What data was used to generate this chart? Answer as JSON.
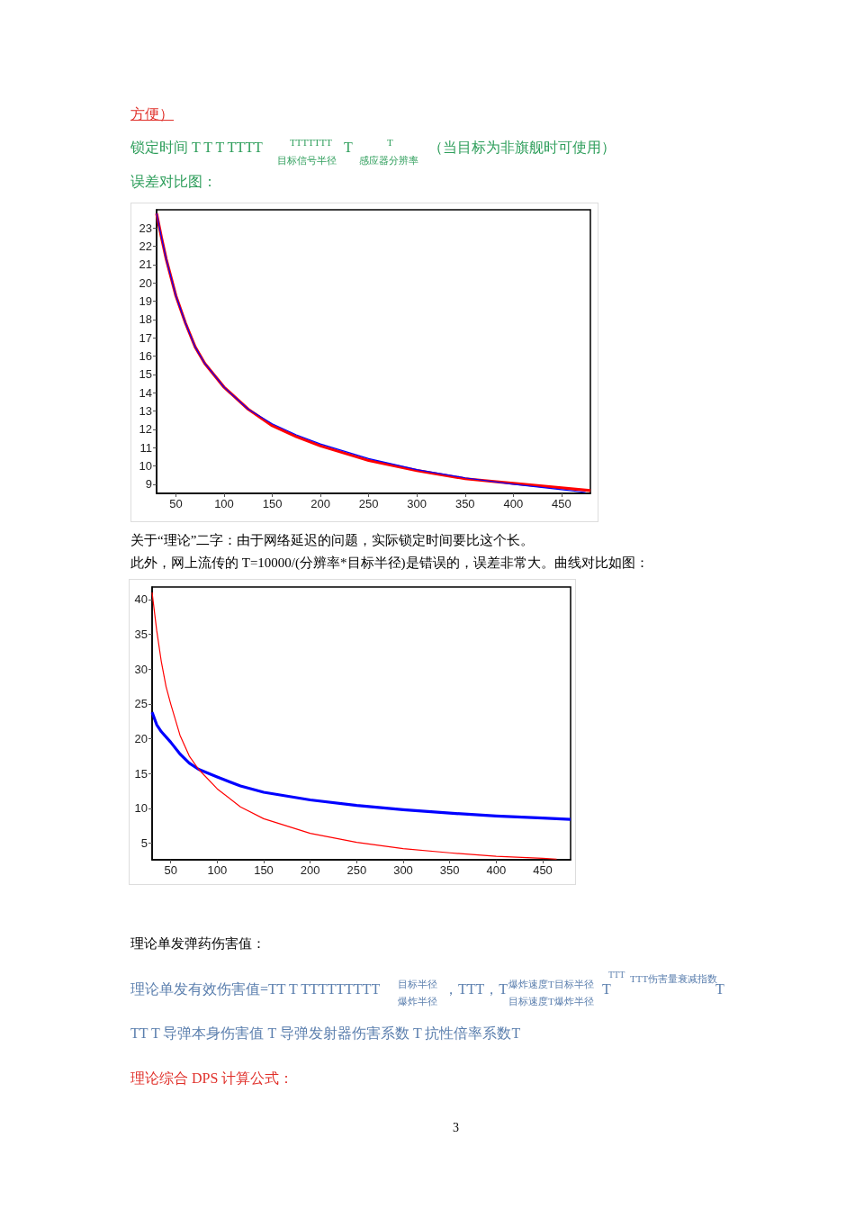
{
  "chart_data": [
    {
      "type": "line",
      "title": "误差对比图：",
      "annotations": [
        "方便）",
        "锁定时间 T T T TTTT",
        "TTTTTTT",
        "目标信号半径",
        "T",
        "T",
        "感应器分辨率",
        "（当目标为非旗舰时可使用）"
      ],
      "xlim": [
        30,
        480
      ],
      "ylim": [
        8.5,
        24
      ],
      "xticks": [
        50,
        100,
        150,
        200,
        250,
        300,
        350,
        400,
        450
      ],
      "yticks": [
        9,
        10,
        11,
        12,
        13,
        14,
        15,
        16,
        17,
        18,
        19,
        20,
        21,
        22,
        23
      ],
      "marker": "none",
      "line_style": "solid",
      "grid": false,
      "series": [
        {
          "color": "#ff0000",
          "x": [
            30,
            35,
            40,
            50,
            60,
            70,
            80,
            100,
            125,
            150,
            175,
            200,
            250,
            300,
            350,
            400,
            450,
            480
          ],
          "values": [
            23.8,
            22.5,
            21.3,
            19.3,
            17.8,
            16.5,
            15.6,
            14.3,
            13.1,
            12.2,
            11.6,
            11.1,
            10.3,
            9.75,
            9.3,
            9.05,
            8.8,
            8.65
          ]
        },
        {
          "color": "#0000ff",
          "x": [
            30,
            35,
            40,
            50,
            60,
            70,
            80,
            100,
            125,
            150,
            175,
            200,
            250,
            300,
            350,
            400,
            450,
            475
          ],
          "values": [
            23.8,
            22.5,
            21.3,
            19.3,
            17.8,
            16.5,
            15.6,
            14.3,
            13.1,
            12.3,
            11.7,
            11.2,
            10.4,
            9.8,
            9.35,
            9.0,
            8.7,
            8.55
          ]
        }
      ]
    },
    {
      "type": "line",
      "title": "此外，网上流传的 T=10000/(分辨率*目标半径)是错误的，误差非常大。曲线对比如图：",
      "annotations": [
        "关于“理论”二字：由于网络延迟的问题，实际锁定时间要比这个长。",
        "理论单发弹药伤害值：",
        "理论单发有效伤害值=TT T TTTTTTTTT",
        "目标半径",
        "爆炸半径",
        "，TTT，T",
        "爆炸速度T目标半径",
        "目标速度T爆炸半径",
        "T",
        "TTT",
        "TTT伤害量衰减指数",
        "T",
        "TT T 导弹本身伤害值 T 导弹发射器伤害系数 T 抗性倍率系数T",
        "理论综合 DPS 计算公式：",
        "3"
      ],
      "xlim": [
        30,
        480
      ],
      "ylim": [
        2.6,
        41.8
      ],
      "xticks": [
        50,
        100,
        150,
        200,
        250,
        300,
        350,
        400,
        450
      ],
      "yticks": [
        5,
        10,
        15,
        20,
        25,
        30,
        35,
        40
      ],
      "marker": "none",
      "line_style": "solid",
      "grid": false,
      "series": [
        {
          "color": "#0000ff",
          "x": [
            30,
            35,
            40,
            50,
            60,
            70,
            80,
            100,
            125,
            150,
            200,
            250,
            300,
            350,
            400,
            450,
            480
          ],
          "values": [
            23.8,
            22,
            21,
            19.5,
            17.8,
            16.5,
            15.6,
            14.5,
            13.2,
            12.3,
            11.2,
            10.4,
            9.8,
            9.3,
            8.9,
            8.6,
            8.4
          ]
        },
        {
          "color": "#ff0000",
          "x": [
            30,
            35,
            40,
            45,
            50,
            60,
            70,
            80,
            100,
            125,
            150,
            200,
            250,
            300,
            350,
            400,
            450,
            465
          ],
          "values": [
            41,
            35.5,
            31,
            27.5,
            25,
            20.5,
            17.5,
            15.6,
            12.8,
            10.2,
            8.5,
            6.4,
            5.1,
            4.2,
            3.6,
            3.1,
            2.8,
            2.7
          ]
        }
      ]
    }
  ]
}
